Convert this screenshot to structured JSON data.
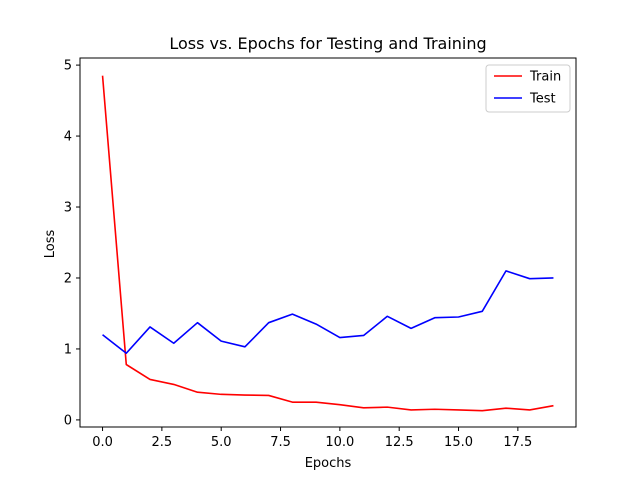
{
  "chart_data": {
    "type": "line",
    "title": "Loss vs. Epochs for Testing and Training",
    "xlabel": "Epochs",
    "ylabel": "Loss",
    "xlim": [
      -0.95,
      19.95
    ],
    "ylim": [
      -0.1,
      5.1
    ],
    "xticks": [
      0.0,
      2.5,
      5.0,
      7.5,
      10.0,
      12.5,
      15.0,
      17.5
    ],
    "xtick_labels": [
      "0.0",
      "2.5",
      "5.0",
      "7.5",
      "10.0",
      "12.5",
      "15.0",
      "17.5"
    ],
    "yticks": [
      0,
      1,
      2,
      3,
      4,
      5
    ],
    "ytick_labels": [
      "0",
      "1",
      "2",
      "3",
      "4",
      "5"
    ],
    "grid": false,
    "legend_position": "top-right",
    "x": [
      0,
      1,
      2,
      3,
      4,
      5,
      6,
      7,
      8,
      9,
      10,
      11,
      12,
      13,
      14,
      15,
      16,
      17,
      18,
      19
    ],
    "series": [
      {
        "name": "Train",
        "color": "#ff0000",
        "values": [
          4.85,
          0.78,
          0.57,
          0.5,
          0.39,
          0.36,
          0.35,
          0.345,
          0.25,
          0.25,
          0.215,
          0.17,
          0.18,
          0.14,
          0.15,
          0.14,
          0.13,
          0.165,
          0.14,
          0.2
        ]
      },
      {
        "name": "Test",
        "color": "#0000ff",
        "values": [
          1.2,
          0.94,
          1.31,
          1.08,
          1.37,
          1.11,
          1.03,
          1.37,
          1.49,
          1.35,
          1.16,
          1.19,
          1.46,
          1.29,
          1.44,
          1.45,
          1.53,
          2.1,
          1.99,
          2.0
        ]
      }
    ]
  }
}
